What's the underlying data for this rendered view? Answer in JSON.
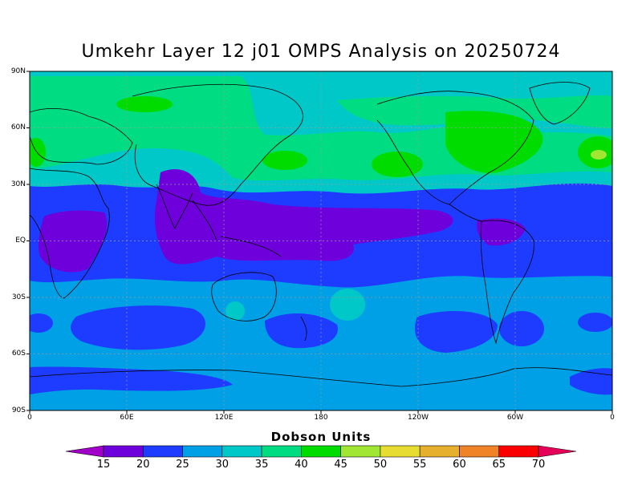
{
  "title": "Umkehr Layer 12 j01 OMPS Analysis on 20250724",
  "latitude_ticks": [
    "90N",
    "60N",
    "30N",
    "EQ",
    "30S",
    "60S",
    "90S"
  ],
  "longitude_ticks": [
    "0",
    "60E",
    "120E",
    "180",
    "120W",
    "60W",
    "0"
  ],
  "colorbar": {
    "title": "Dobson Units",
    "labels": [
      "15",
      "20",
      "25",
      "30",
      "35",
      "40",
      "45",
      "50",
      "55",
      "60",
      "65",
      "70"
    ],
    "colors": [
      "#a000c8",
      "#6e00dc",
      "#1e3cff",
      "#00a0e6",
      "#00c8c8",
      "#00dc82",
      "#00dc00",
      "#a0e632",
      "#e6dc32",
      "#e6af2d",
      "#f08228",
      "#fa0000",
      "#e6005a"
    ]
  },
  "chart_data": {
    "type": "heatmap",
    "title": "Umkehr Layer 12 j01 OMPS Analysis on 20250724",
    "xlabel": "",
    "ylabel": "",
    "colorbar_title": "Dobson Units",
    "xlim": [
      "0",
      "0"
    ],
    "ylim": [
      "90S",
      "90N"
    ],
    "grid": true,
    "levels": [
      15,
      20,
      25,
      30,
      35,
      40,
      45,
      50,
      55,
      60,
      65,
      70
    ],
    "regions": [
      {
        "area": "high northern latitudes",
        "value_range": [
          35,
          40
        ]
      },
      {
        "area": "northern mid latitudes",
        "value_range": [
          35,
          45
        ]
      },
      {
        "area": "North Atlantic east of Newfoundland",
        "value_range": [
          45,
          50
        ]
      },
      {
        "area": "subtropics",
        "value_range": [
          25,
          30
        ]
      },
      {
        "area": "tropical Indian Ocean and Pacific",
        "value_range": [
          15,
          20
        ]
      },
      {
        "area": "southern mid latitudes",
        "value_range": [
          25,
          35
        ]
      },
      {
        "area": "southern subtropical bands",
        "value_range": [
          20,
          25
        ]
      },
      {
        "area": "Antarctic margin",
        "value_range": [
          20,
          25
        ]
      }
    ]
  }
}
